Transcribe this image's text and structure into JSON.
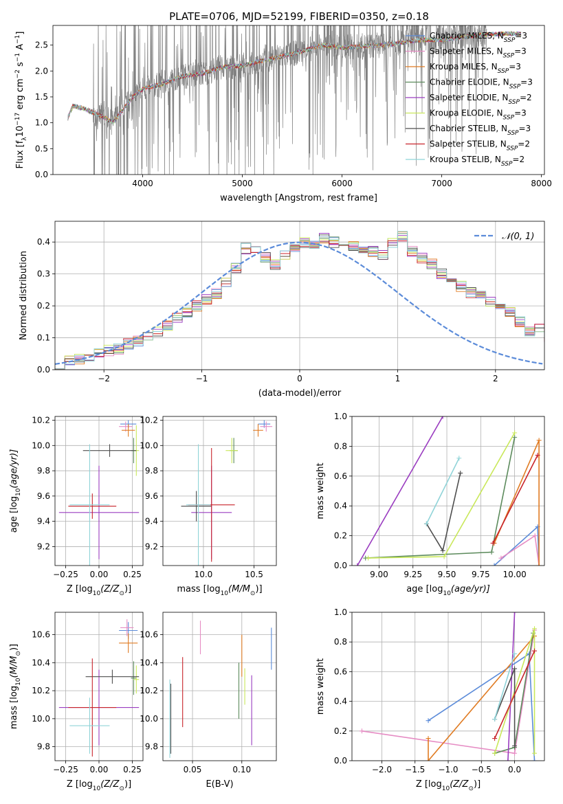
{
  "figure": {
    "title": "PLATE=0706, MJD=52199, FIBERID=0350, z=0.18"
  },
  "colors": {
    "spectrum": "#808080",
    "normal": "#5b8bd9"
  },
  "legend": {
    "spectrum_entries": [
      {
        "label": "Chabrier MILES, N",
        "sub": "SSP",
        "suffix": "=3",
        "color": "#5b8bd9"
      },
      {
        "label": "Salpeter MILES, N",
        "sub": "SSP",
        "suffix": "=3",
        "color": "#e68cc4"
      },
      {
        "label": "Kroupa MILES, N",
        "sub": "SSP",
        "suffix": "=3",
        "color": "#e07b22"
      },
      {
        "label": "Chabrier ELODIE, N",
        "sub": "SSP",
        "suffix": "=3",
        "color": "#5b8a5b"
      },
      {
        "label": "Salpeter ELODIE, N",
        "sub": "SSP",
        "suffix": "=2",
        "color": "#9a3cc0"
      },
      {
        "label": "Kroupa ELODIE, N",
        "sub": "SSP",
        "suffix": "=3",
        "color": "#c9e85a"
      },
      {
        "label": "Chabrier STELIB, N",
        "sub": "SSP",
        "suffix": "=3",
        "color": "#4d4d4d"
      },
      {
        "label": "Salpeter STELIB, N",
        "sub": "SSP",
        "suffix": "=2",
        "color": "#c8232a"
      },
      {
        "label": "Kroupa STELIB, N",
        "sub": "SSP",
        "suffix": "=2",
        "color": "#8fd3d8"
      }
    ],
    "normal_label": "𝒩(0, 1)"
  },
  "chart_data": [
    {
      "id": "spectrum",
      "type": "line",
      "xlabel": "wavelength [Angstrom, rest frame]",
      "ylabel_parts": [
        "Flux [f",
        "λ",
        "10",
        "−17",
        " erg cm",
        "−2",
        " s",
        "−1",
        " A",
        "−1",
        "]"
      ],
      "xlim": [
        3100,
        8030
      ],
      "ylim": [
        0,
        2.88
      ],
      "xticks": [
        4000,
        5000,
        6000,
        7000,
        8000
      ],
      "yticks": [
        0.0,
        0.5,
        1.0,
        1.5,
        2.0,
        2.5
      ],
      "xtick_labels": [
        "4000",
        "5000",
        "6000",
        "7000",
        "8000"
      ],
      "ytick_labels": [
        "0.0",
        "0.5",
        "1.0",
        "1.5",
        "2.0",
        "2.5"
      ],
      "continuum": {
        "x": [
          3250,
          3300,
          3400,
          3500,
          3600,
          3700,
          3800,
          3900,
          4000,
          4200,
          4400,
          4600,
          4800,
          5000,
          5200,
          5400,
          5600,
          5800,
          6000,
          6200,
          6400,
          6600,
          6800,
          7000,
          7200,
          7400,
          7600,
          7800
        ],
        "y": [
          1.1,
          1.32,
          1.28,
          1.2,
          1.12,
          1.0,
          1.25,
          1.5,
          1.65,
          1.75,
          1.9,
          1.95,
          2.08,
          2.1,
          2.2,
          2.28,
          2.38,
          2.5,
          2.45,
          2.48,
          2.5,
          2.55,
          2.6,
          2.6,
          2.65,
          2.7,
          2.72,
          2.72
        ]
      },
      "noise_start": 3500,
      "noise_end": 7450
    },
    {
      "id": "residuals",
      "type": "histogram",
      "xlabel": "(data-model)/error",
      "ylabel": "Normed distribution",
      "xlim": [
        -2.5,
        2.5
      ],
      "ylim": [
        0,
        0.465
      ],
      "xticks": [
        -2,
        -1,
        0,
        1,
        2
      ],
      "yticks": [
        0.0,
        0.1,
        0.2,
        0.3,
        0.4
      ],
      "xtick_labels": [
        "−2",
        "−1",
        "0",
        "1",
        "2"
      ],
      "ytick_labels": [
        "0.0",
        "0.1",
        "0.2",
        "0.3",
        "0.4"
      ],
      "bin_width": 0.1,
      "normal_curve": {
        "mean": 0,
        "sigma": 1
      },
      "base_values": [
        0.02,
        0.03,
        0.035,
        0.04,
        0.05,
        0.06,
        0.065,
        0.08,
        0.09,
        0.1,
        0.12,
        0.14,
        0.16,
        0.18,
        0.2,
        0.22,
        0.24,
        0.27,
        0.32,
        0.38,
        0.37,
        0.35,
        0.33,
        0.36,
        0.38,
        0.4,
        0.39,
        0.41,
        0.4,
        0.38,
        0.39,
        0.38,
        0.37,
        0.36,
        0.4,
        0.42,
        0.37,
        0.35,
        0.33,
        0.3,
        0.28,
        0.26,
        0.24,
        0.23,
        0.21,
        0.2,
        0.18,
        0.15,
        0.12,
        0.13,
        0.1,
        0.09,
        0.08,
        0.07,
        0.06,
        0.05,
        0.04,
        0.03,
        0.025,
        0.02
      ],
      "base_start": -2.5
    },
    {
      "id": "age-vs-Z",
      "type": "errorbar",
      "xlabel_parts": [
        "Z [log",
        "10",
        "(Z/Z",
        "⊙",
        ")]"
      ],
      "ylabel_parts": [
        "age  [log",
        "10",
        "(age/yr)]"
      ],
      "xlim": [
        -0.33,
        0.33
      ],
      "ylim": [
        9.05,
        10.23
      ],
      "xticks": [
        -0.25,
        0.0,
        0.25
      ],
      "yticks": [
        9.2,
        9.4,
        9.6,
        9.8,
        10.0,
        10.2
      ],
      "xtick_labels": [
        "−0.25",
        "0.00",
        "0.25"
      ],
      "ytick_labels": [
        "9.2",
        "9.4",
        "9.6",
        "9.8",
        "10.0",
        "10.2"
      ],
      "points": [
        {
          "x": 0.22,
          "y": 10.17,
          "xerr": 0.06,
          "yerr": 0.03,
          "color": "#5b8bd9"
        },
        {
          "x": 0.2,
          "y": 10.15,
          "xerr": 0.05,
          "yerr": 0.04,
          "color": "#e68cc4"
        },
        {
          "x": 0.22,
          "y": 10.12,
          "xerr": 0.05,
          "yerr": 0.05,
          "color": "#e07b22"
        },
        {
          "x": 0.26,
          "y": 9.96,
          "xerr": 0.02,
          "yerr": 0.1,
          "color": "#5b8a5b"
        },
        {
          "x": 0.0,
          "y": 9.47,
          "xerr": 0.3,
          "yerr": 0.37,
          "color": "#9a3cc0"
        },
        {
          "x": 0.28,
          "y": 9.96,
          "xerr": 0.02,
          "yerr": 0.2,
          "color": "#c9e85a"
        },
        {
          "x": 0.08,
          "y": 9.96,
          "xerr": 0.2,
          "yerr": 0.05,
          "color": "#4d4d4d"
        },
        {
          "x": -0.05,
          "y": 9.52,
          "xerr": 0.18,
          "yerr": 0.1,
          "color": "#c8232a"
        },
        {
          "x": -0.07,
          "y": 9.53,
          "xerr": 0.15,
          "yerr": 0.48,
          "color": "#8fd3d8"
        }
      ]
    },
    {
      "id": "age-vs-mass",
      "type": "errorbar",
      "xlabel_parts": [
        "mass [log",
        "10",
        "(M/M",
        "⊙",
        ")]"
      ],
      "xlim": [
        9.6,
        10.72
      ],
      "ylim": [
        9.05,
        10.23
      ],
      "xticks": [
        10.0,
        10.5
      ],
      "yticks": [
        9.2,
        9.4,
        9.6,
        9.8,
        10.0,
        10.2
      ],
      "xtick_labels": [
        "10.0",
        "10.5"
      ],
      "ytick_labels": [
        "9.2",
        "9.4",
        "9.6",
        "9.8",
        "10.0",
        "10.2"
      ],
      "points": [
        {
          "x": 10.6,
          "y": 10.17,
          "xerr": 0.06,
          "yerr": 0.03,
          "color": "#5b8bd9"
        },
        {
          "x": 10.62,
          "y": 10.15,
          "xerr": 0.06,
          "yerr": 0.04,
          "color": "#e68cc4"
        },
        {
          "x": 10.54,
          "y": 10.12,
          "xerr": 0.05,
          "yerr": 0.05,
          "color": "#e07b22"
        },
        {
          "x": 10.3,
          "y": 9.96,
          "xerr": 0.04,
          "yerr": 0.1,
          "color": "#5b8a5b"
        },
        {
          "x": 10.08,
          "y": 9.47,
          "xerr": 0.2,
          "yerr": 0.37,
          "color": "#9a3cc0"
        },
        {
          "x": 10.28,
          "y": 9.96,
          "xerr": 0.06,
          "yerr": 0.1,
          "color": "#c9e85a"
        },
        {
          "x": 9.93,
          "y": 9.52,
          "xerr": 0.15,
          "yerr": 0.12,
          "color": "#4d4d4d"
        },
        {
          "x": 10.08,
          "y": 9.53,
          "xerr": 0.23,
          "yerr": 0.45,
          "color": "#c8232a"
        },
        {
          "x": 9.95,
          "y": 9.53,
          "xerr": 0.12,
          "yerr": 0.48,
          "color": "#8fd3d8"
        }
      ]
    },
    {
      "id": "massweight-vs-age",
      "type": "line",
      "xlabel_parts": [
        "age  [log",
        "10",
        "(age/yr)]"
      ],
      "ylabel": "mass weight",
      "xlim": [
        8.8,
        10.22
      ],
      "ylim": [
        0,
        1.0
      ],
      "xticks": [
        9.0,
        9.25,
        9.5,
        9.75,
        10.0
      ],
      "yticks": [
        0.0,
        0.2,
        0.4,
        0.6,
        0.8,
        1.0
      ],
      "xtick_labels": [
        "9.00",
        "9.25",
        "9.50",
        "9.75",
        "10.00"
      ],
      "ytick_labels": [
        "0.0",
        "0.2",
        "0.4",
        "0.6",
        "0.8",
        "1.0"
      ],
      "series": [
        {
          "color": "#5b8bd9",
          "x": [
            9.85,
            10.17,
            10.18
          ],
          "y": [
            0.0,
            0.26,
            0.0
          ]
        },
        {
          "color": "#e68cc4",
          "x": [
            9.9,
            10.15,
            10.18
          ],
          "y": [
            0.05,
            0.2,
            0.0
          ]
        },
        {
          "color": "#e07b22",
          "x": [
            9.85,
            10.18,
            10.18
          ],
          "y": [
            0.15,
            0.84,
            0.0
          ]
        },
        {
          "color": "#5b8a5b",
          "x": [
            8.9,
            9.83,
            10.0
          ],
          "y": [
            0.05,
            0.09,
            0.86
          ]
        },
        {
          "color": "#9a3cc0",
          "x": [
            8.84,
            9.47
          ],
          "y": [
            0.0,
            1.0
          ]
        },
        {
          "color": "#c9e85a",
          "x": [
            8.92,
            9.48,
            10.0
          ],
          "y": [
            0.05,
            0.06,
            0.89
          ]
        },
        {
          "color": "#4d4d4d",
          "x": [
            9.35,
            9.47,
            9.6
          ],
          "y": [
            0.28,
            0.1,
            0.62
          ]
        },
        {
          "color": "#c8232a",
          "x": [
            9.84,
            10.17
          ],
          "y": [
            0.15,
            0.74
          ]
        },
        {
          "color": "#8fd3d8",
          "x": [
            9.35,
            9.59
          ],
          "y": [
            0.28,
            0.72
          ]
        }
      ]
    },
    {
      "id": "mass-vs-Z",
      "type": "errorbar",
      "xlabel_parts": [
        "Z [log",
        "10",
        "(Z/Z",
        "⊙",
        ")]"
      ],
      "ylabel_parts": [
        "mass [log",
        "10",
        "(M/M",
        "⊙",
        ")]"
      ],
      "xlim": [
        -0.33,
        0.33
      ],
      "ylim": [
        9.7,
        10.76
      ],
      "xticks": [
        -0.25,
        0.0,
        0.25
      ],
      "yticks": [
        9.8,
        10.0,
        10.2,
        10.4,
        10.6
      ],
      "xtick_labels": [
        "−0.25",
        "0.00",
        "0.25"
      ],
      "ytick_labels": [
        "9.8",
        "10.0",
        "10.2",
        "10.4",
        "10.6"
      ],
      "points": [
        {
          "x": 0.22,
          "y": 10.63,
          "xerr": 0.07,
          "yerr": 0.06,
          "color": "#5b8bd9"
        },
        {
          "x": 0.21,
          "y": 10.65,
          "xerr": 0.05,
          "yerr": 0.06,
          "color": "#e68cc4"
        },
        {
          "x": 0.22,
          "y": 10.54,
          "xerr": 0.07,
          "yerr": 0.07,
          "color": "#e07b22"
        },
        {
          "x": 0.26,
          "y": 10.29,
          "xerr": 0.02,
          "yerr": 0.12,
          "color": "#5b8a5b"
        },
        {
          "x": 0.0,
          "y": 10.08,
          "xerr": 0.3,
          "yerr": 0.27,
          "color": "#9a3cc0"
        },
        {
          "x": 0.28,
          "y": 10.28,
          "xerr": 0.02,
          "yerr": 0.1,
          "color": "#c9e85a"
        },
        {
          "x": 0.1,
          "y": 10.3,
          "xerr": 0.2,
          "yerr": 0.05,
          "color": "#4d4d4d"
        },
        {
          "x": -0.05,
          "y": 10.08,
          "xerr": 0.18,
          "yerr": 0.35,
          "color": "#c8232a"
        },
        {
          "x": -0.07,
          "y": 9.95,
          "xerr": 0.15,
          "yerr": 0.2,
          "color": "#8fd3d8"
        }
      ]
    },
    {
      "id": "mass-vs-ebv",
      "type": "errorbar",
      "xlabel": "E(B-V)",
      "xlim": [
        0.02,
        0.135
      ],
      "ylim": [
        9.7,
        10.76
      ],
      "xticks": [
        0.05,
        0.1
      ],
      "yticks": [
        9.8,
        10.0,
        10.2,
        10.4,
        10.6
      ],
      "xtick_labels": [
        "0.05",
        "0.10"
      ],
      "ytick_labels": [
        "9.8",
        "10.0",
        "10.2",
        "10.4",
        "10.6"
      ],
      "points": [
        {
          "x": 0.13,
          "y": 10.5,
          "xerr": 0,
          "yerr": 0.15,
          "color": "#5b8bd9"
        },
        {
          "x": 0.058,
          "y": 10.58,
          "xerr": 0,
          "yerr": 0.12,
          "color": "#e68cc4"
        },
        {
          "x": 0.1,
          "y": 10.45,
          "xerr": 0,
          "yerr": 0.15,
          "color": "#e07b22"
        },
        {
          "x": 0.097,
          "y": 10.2,
          "xerr": 0,
          "yerr": 0.2,
          "color": "#5b8a5b"
        },
        {
          "x": 0.11,
          "y": 10.06,
          "xerr": 0,
          "yerr": 0.25,
          "color": "#9a3cc0"
        },
        {
          "x": 0.103,
          "y": 10.23,
          "xerr": 0,
          "yerr": 0.13,
          "color": "#c9e85a"
        },
        {
          "x": 0.028,
          "y": 10.0,
          "xerr": 0,
          "yerr": 0.25,
          "color": "#4d4d4d"
        },
        {
          "x": 0.04,
          "y": 10.19,
          "xerr": 0,
          "yerr": 0.25,
          "color": "#c8232a"
        },
        {
          "x": 0.027,
          "y": 10.0,
          "xerr": 0,
          "yerr": 0.28,
          "color": "#8fd3d8"
        }
      ]
    },
    {
      "id": "massweight-vs-Z",
      "type": "line",
      "xlabel_parts": [
        "Z [log",
        "10",
        "(Z/Z",
        "⊙",
        ")]"
      ],
      "ylabel": "mass weight",
      "xlim": [
        -2.45,
        0.45
      ],
      "ylim": [
        0,
        1.0
      ],
      "xticks": [
        -2.0,
        -1.5,
        -1.0,
        -0.5,
        0.0
      ],
      "yticks": [
        0.0,
        0.2,
        0.4,
        0.6,
        0.8,
        1.0
      ],
      "xtick_labels": [
        "−2.0",
        "−1.5",
        "−1.0",
        "−0.5",
        "0.0"
      ],
      "ytick_labels": [
        "0.0",
        "0.2",
        "0.4",
        "0.6",
        "0.8",
        "1.0"
      ],
      "series": [
        {
          "color": "#5b8bd9",
          "x": [
            -1.3,
            0.22,
            0.3
          ],
          "y": [
            0.27,
            0.72,
            0.0
          ]
        },
        {
          "color": "#e68cc4",
          "x": [
            -2.3,
            0.0,
            0.3
          ],
          "y": [
            0.2,
            0.05,
            0.88
          ]
        },
        {
          "color": "#e07b22",
          "x": [
            -1.3,
            -1.3,
            0.3
          ],
          "y": [
            0.15,
            0.0,
            0.84
          ]
        },
        {
          "color": "#5b8a5b",
          "x": [
            -0.3,
            0.0,
            0.28
          ],
          "y": [
            0.05,
            0.09,
            0.86
          ]
        },
        {
          "color": "#9a3cc0",
          "x": [
            -0.1,
            0.0
          ],
          "y": [
            0.0,
            1.0
          ]
        },
        {
          "color": "#c9e85a",
          "x": [
            -0.3,
            0.3,
            0.3
          ],
          "y": [
            0.05,
            0.89,
            0.05
          ]
        },
        {
          "color": "#4d4d4d",
          "x": [
            -0.3,
            0.0,
            0.0
          ],
          "y": [
            0.28,
            0.62,
            0.1
          ]
        },
        {
          "color": "#c8232a",
          "x": [
            -0.3,
            0.3
          ],
          "y": [
            0.15,
            0.74
          ]
        },
        {
          "color": "#8fd3d8",
          "x": [
            -0.3,
            0.0
          ],
          "y": [
            0.28,
            0.72
          ]
        }
      ]
    }
  ]
}
